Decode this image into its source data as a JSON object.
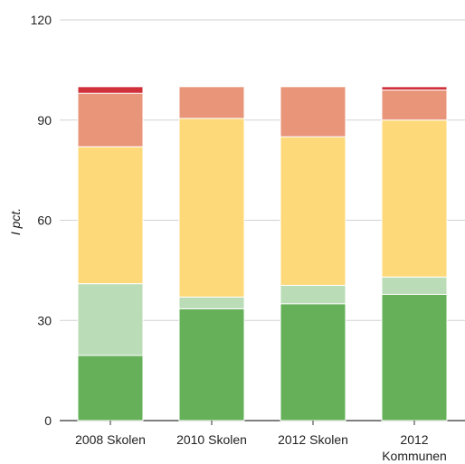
{
  "chart_data": {
    "type": "bar",
    "stacked": true,
    "ylabel": "I pct.",
    "ylim": [
      0,
      120
    ],
    "yticks": [
      0,
      30,
      60,
      90,
      120
    ],
    "grid": true,
    "categories": [
      [
        "2008 Skolen"
      ],
      [
        "2010 Skolen"
      ],
      [
        "2012 Skolen"
      ],
      [
        "2012",
        "Kommunen"
      ]
    ],
    "series": [
      {
        "color": "#66b05a",
        "values": [
          19.5,
          33.5,
          35,
          37.8
        ]
      },
      {
        "color": "#badcb6",
        "values": [
          21.5,
          3.5,
          5.5,
          5.2
        ]
      },
      {
        "color": "#fed97a",
        "values": [
          41,
          53.5,
          44.5,
          47
        ]
      },
      {
        "color": "#e8957a",
        "values": [
          16,
          9.5,
          15,
          9
        ]
      },
      {
        "color": "#d0303a",
        "values": [
          2,
          0,
          0,
          1
        ]
      }
    ]
  }
}
